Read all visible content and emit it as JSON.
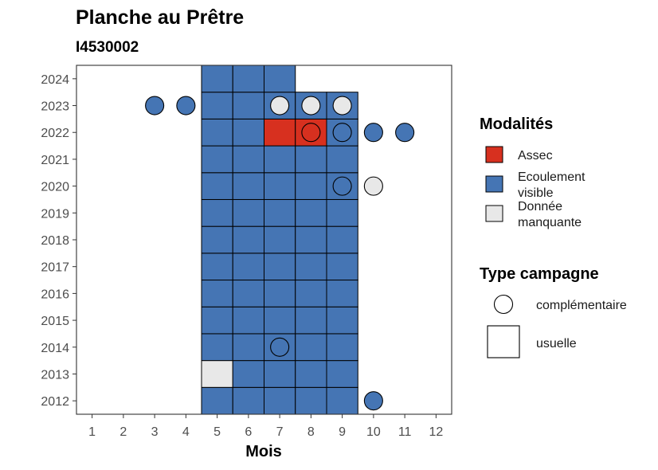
{
  "chart_data": {
    "type": "heatmap",
    "title": "Planche au Prêtre",
    "subtitle": "I4530002",
    "xlabel": "Mois",
    "ylabel": "",
    "x_ticks": [
      1,
      2,
      3,
      4,
      5,
      6,
      7,
      8,
      9,
      10,
      11,
      12
    ],
    "y_ticks": [
      2012,
      2013,
      2014,
      2015,
      2016,
      2017,
      2018,
      2019,
      2020,
      2021,
      2022,
      2023,
      2024
    ],
    "xlim": [
      0.5,
      12.5
    ],
    "ylim": [
      2011.5,
      2024.5
    ],
    "grid": false,
    "colors": {
      "assec": "#d7301f",
      "ecoulement": "#4575b4",
      "manquante": "#e8e8e8"
    },
    "legend": {
      "position": "right",
      "modalites_title": "Modalités",
      "modalites": [
        {
          "key": "assec",
          "label_lines": [
            "Assec"
          ]
        },
        {
          "key": "ecoulement",
          "label_lines": [
            "Ecoulement",
            "visible"
          ]
        },
        {
          "key": "manquante",
          "label_lines": [
            "Donnée",
            "manquante"
          ]
        }
      ],
      "type_title": "Type campagne",
      "types": [
        {
          "shape": "circle",
          "label": "complémentaire"
        },
        {
          "shape": "square",
          "label": "usuelle"
        }
      ]
    },
    "usuelle_tiles": [
      {
        "year": 2012,
        "months": [
          5,
          6,
          7,
          8,
          9
        ],
        "values": [
          "ecoulement",
          "ecoulement",
          "ecoulement",
          "ecoulement",
          "ecoulement"
        ]
      },
      {
        "year": 2013,
        "months": [
          5,
          6,
          7,
          8,
          9
        ],
        "values": [
          "manquante",
          "ecoulement",
          "ecoulement",
          "ecoulement",
          "ecoulement"
        ]
      },
      {
        "year": 2014,
        "months": [
          5,
          6,
          7,
          8,
          9
        ],
        "values": [
          "ecoulement",
          "ecoulement",
          "ecoulement",
          "ecoulement",
          "ecoulement"
        ]
      },
      {
        "year": 2015,
        "months": [
          5,
          6,
          7,
          8,
          9
        ],
        "values": [
          "ecoulement",
          "ecoulement",
          "ecoulement",
          "ecoulement",
          "ecoulement"
        ]
      },
      {
        "year": 2016,
        "months": [
          5,
          6,
          7,
          8,
          9
        ],
        "values": [
          "ecoulement",
          "ecoulement",
          "ecoulement",
          "ecoulement",
          "ecoulement"
        ]
      },
      {
        "year": 2017,
        "months": [
          5,
          6,
          7,
          8,
          9
        ],
        "values": [
          "ecoulement",
          "ecoulement",
          "ecoulement",
          "ecoulement",
          "ecoulement"
        ]
      },
      {
        "year": 2018,
        "months": [
          5,
          6,
          7,
          8,
          9
        ],
        "values": [
          "ecoulement",
          "ecoulement",
          "ecoulement",
          "ecoulement",
          "ecoulement"
        ]
      },
      {
        "year": 2019,
        "months": [
          5,
          6,
          7,
          8,
          9
        ],
        "values": [
          "ecoulement",
          "ecoulement",
          "ecoulement",
          "ecoulement",
          "ecoulement"
        ]
      },
      {
        "year": 2020,
        "months": [
          5,
          6,
          7,
          8,
          9
        ],
        "values": [
          "ecoulement",
          "ecoulement",
          "ecoulement",
          "ecoulement",
          "ecoulement"
        ]
      },
      {
        "year": 2021,
        "months": [
          5,
          6,
          7,
          8,
          9
        ],
        "values": [
          "ecoulement",
          "ecoulement",
          "ecoulement",
          "ecoulement",
          "ecoulement"
        ]
      },
      {
        "year": 2022,
        "months": [
          5,
          6,
          7,
          8,
          9
        ],
        "values": [
          "ecoulement",
          "ecoulement",
          "assec",
          "assec",
          "ecoulement"
        ]
      },
      {
        "year": 2023,
        "months": [
          5,
          6,
          7,
          8,
          9
        ],
        "values": [
          "ecoulement",
          "ecoulement",
          "ecoulement",
          "ecoulement",
          "ecoulement"
        ]
      },
      {
        "year": 2024,
        "months": [
          5,
          6,
          7
        ],
        "values": [
          "ecoulement",
          "ecoulement",
          "ecoulement"
        ]
      }
    ],
    "complementaire_points": [
      {
        "year": 2023,
        "month": 3,
        "value": "ecoulement"
      },
      {
        "year": 2023,
        "month": 4,
        "value": "ecoulement"
      },
      {
        "year": 2023,
        "month": 7,
        "value": "manquante"
      },
      {
        "year": 2023,
        "month": 8,
        "value": "manquante"
      },
      {
        "year": 2023,
        "month": 9,
        "value": "manquante"
      },
      {
        "year": 2022,
        "month": 8,
        "value": "assec"
      },
      {
        "year": 2022,
        "month": 9,
        "value": "ecoulement"
      },
      {
        "year": 2022,
        "month": 10,
        "value": "ecoulement"
      },
      {
        "year": 2022,
        "month": 11,
        "value": "ecoulement"
      },
      {
        "year": 2020,
        "month": 9,
        "value": "ecoulement"
      },
      {
        "year": 2020,
        "month": 10,
        "value": "manquante"
      },
      {
        "year": 2014,
        "month": 7,
        "value": "ecoulement"
      },
      {
        "year": 2012,
        "month": 10,
        "value": "ecoulement"
      }
    ]
  }
}
